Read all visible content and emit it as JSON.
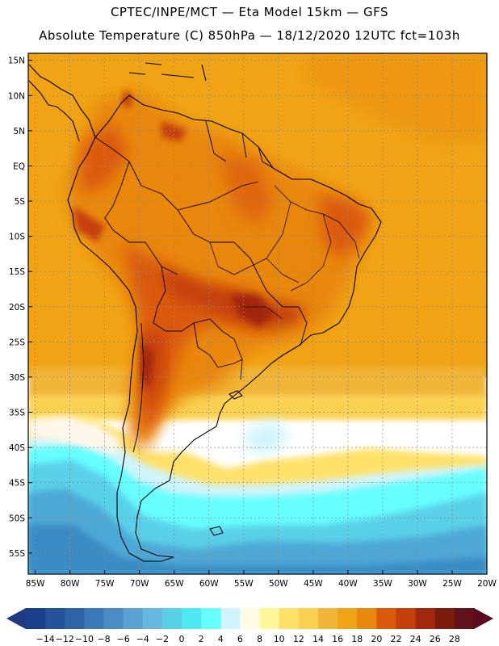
{
  "header": {
    "line1": "CPTEC/INPE/MCT —  Eta Model 15km — GFS",
    "line2": "Absolute Temperature (C) 850hPa — 18/12/2020 12UTC fct=103h"
  },
  "map": {
    "lat_labels": [
      "15N",
      "10N",
      "5N",
      "EQ",
      "5S",
      "10S",
      "15S",
      "20S",
      "25S",
      "30S",
      "35S",
      "40S",
      "45S",
      "50S",
      "55S"
    ],
    "lon_labels": [
      "85W",
      "80W",
      "75W",
      "70W",
      "65W",
      "60W",
      "55W",
      "50W",
      "45W",
      "40W",
      "35W",
      "30W",
      "25W",
      "20W"
    ],
    "lat_range": [
      16,
      -58
    ],
    "lon_range": [
      -86,
      -20
    ],
    "field": "Absolute Temperature (C) at 850hPa"
  },
  "colorbar": {
    "labels": [
      "-14",
      "-12",
      "-10",
      "-8",
      "-6",
      "-4",
      "-2",
      "0",
      "2",
      "4",
      "6",
      "8",
      "10",
      "12",
      "14",
      "16",
      "18",
      "20",
      "22",
      "24",
      "26",
      "28"
    ],
    "colors": [
      "#1a3f8c",
      "#24529b",
      "#2e63a8",
      "#3a78b7",
      "#4a8cc6",
      "#5aa2d2",
      "#66b8e0",
      "#5ad0e8",
      "#4ee8f2",
      "#66fefe",
      "#cff4fb",
      "#fffbe6",
      "#fff69a",
      "#ffe16a",
      "#f9d04f",
      "#f0b438",
      "#f0a315",
      "#e9870f",
      "#db5a0a",
      "#c53f0b",
      "#a2280d",
      "#7a1d0d",
      "#62121c"
    ],
    "colors_note": "23 boxes between the two end arrows",
    "arrow_low_color": "#1f3a80",
    "arrow_high_color": "#5c0a22"
  }
}
